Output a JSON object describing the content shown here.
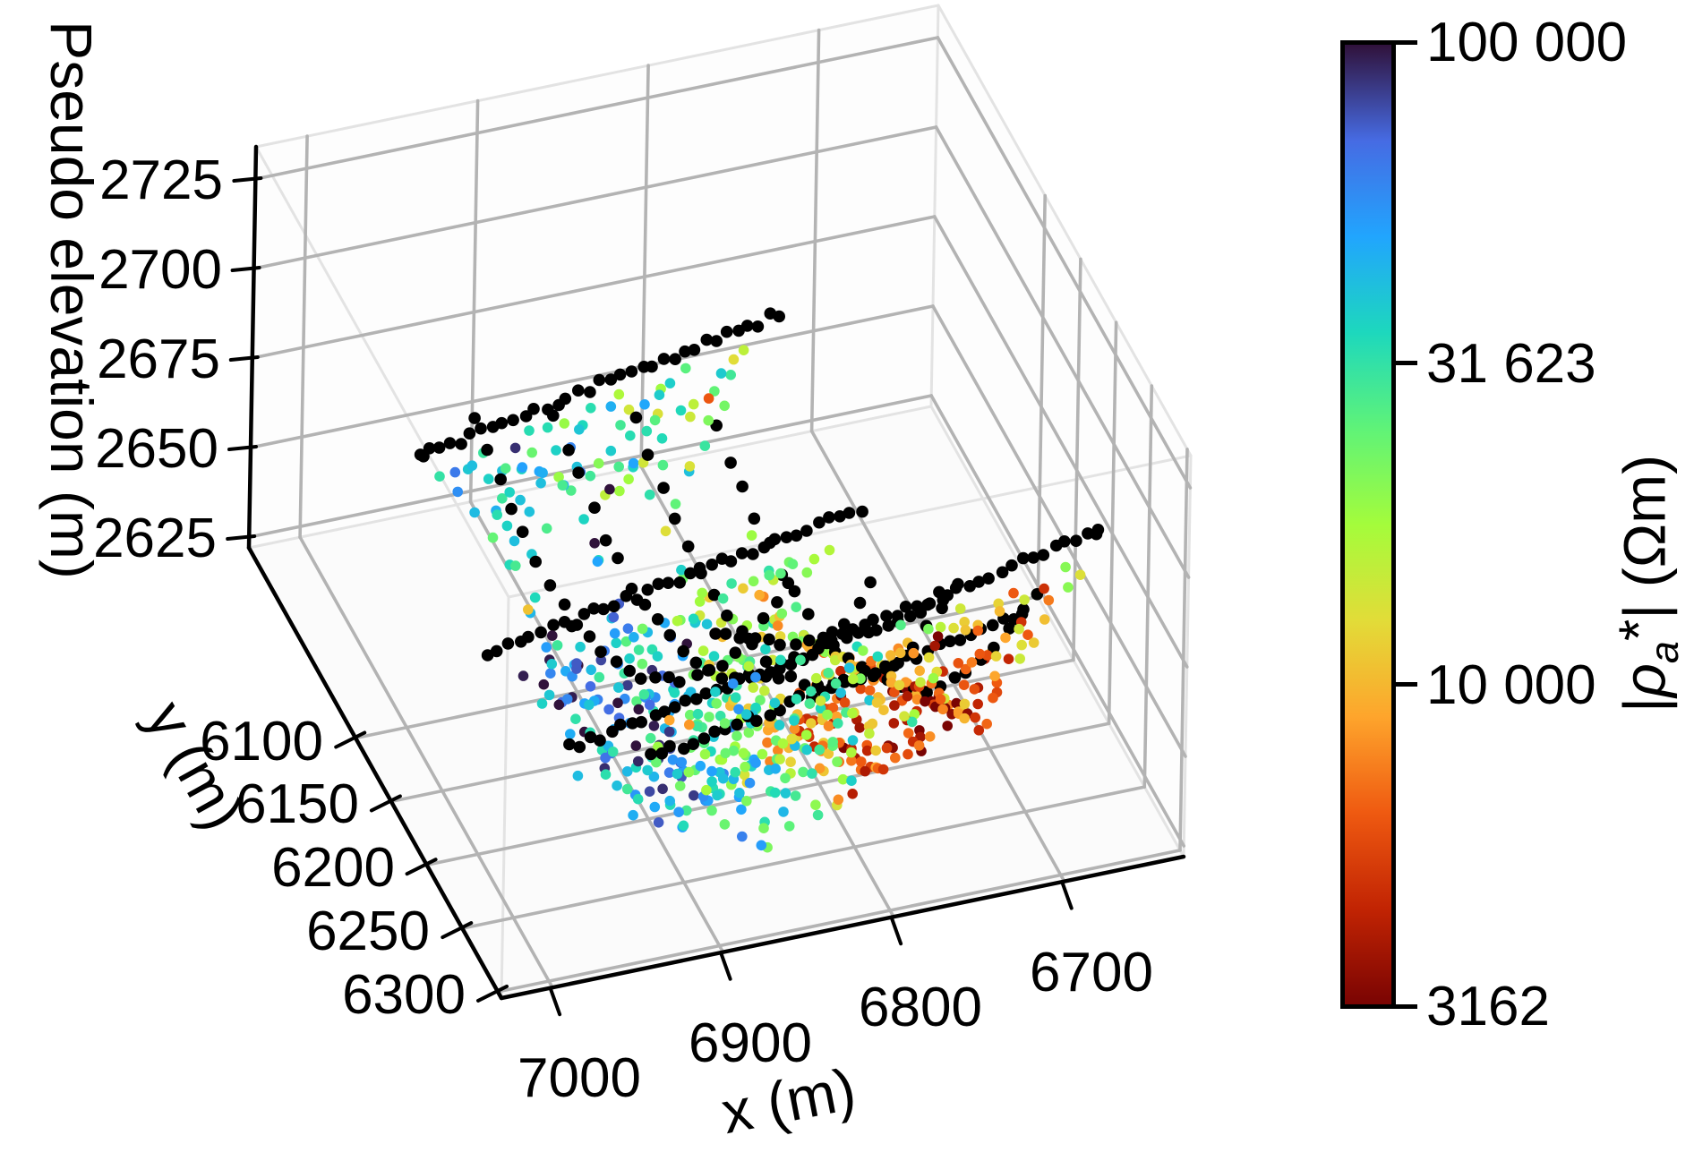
{
  "figure": {
    "background": "#ffffff",
    "description": "3D scatter plot of apparent resistivity pseudosections from crossing geoelectrical survey lines; black dots are electrode positions on the terrain surface, colored dots are measurement midpoints at pseudo depth, colored by apparent resistivity on a log scale."
  },
  "axes": {
    "x": {
      "label": "x (m)",
      "ticks": [
        7000,
        6900,
        6800,
        6700
      ],
      "tick_labels": [
        "7000",
        "6900",
        "6800",
        "6700"
      ],
      "range_left_to_right": [
        7030,
        6630
      ],
      "reversed": true
    },
    "y": {
      "label": "y (m)",
      "ticks": [
        6100,
        6150,
        6200,
        6250,
        6300
      ],
      "tick_labels": [
        "6100",
        "6150",
        "6200",
        "6250",
        "6300"
      ],
      "range_back_to_front": [
        5950,
        6305
      ]
    },
    "z": {
      "label": "Pseudo elevation (m)",
      "ticks": [
        2625,
        2650,
        2675,
        2700,
        2725
      ],
      "tick_labels": [
        "2625",
        "2650",
        "2675",
        "2700",
        "2725"
      ],
      "range_bottom_to_top": [
        2622,
        2734
      ]
    },
    "grid_color": "#b3b3b3",
    "pane_edge_color": "#e3e3e3",
    "pane_fill_floor": "#fbfbfb",
    "pane_fill_walls": "#fdfdfd",
    "spine_color": "#000000"
  },
  "colorbar": {
    "title_parts": {
      "open": "|",
      "rho": "ρ",
      "sub": "a",
      "star": "*",
      "close": "| (Ωm)"
    },
    "title_text": "|ρa*| (Ωm)",
    "scale": "log10",
    "vmin": 3162,
    "vmax": 100000,
    "tick_values": [
      100000,
      31623,
      10000,
      3162
    ],
    "tick_labels": [
      "100 000",
      "31 623",
      "10 000",
      "3162"
    ],
    "colormap": "turbo_reversed",
    "turbo_stops": [
      "#30123b",
      "#466be3",
      "#21a5fe",
      "#1dd8bd",
      "#5ff378",
      "#a4fc3b",
      "#e2dc38",
      "#fea52c",
      "#ef5a11",
      "#c22403",
      "#7a0403"
    ],
    "border_color": "#000000"
  },
  "chart_data": {
    "type": "scatter",
    "subtype": "scatter3d-pseudosection",
    "electrode_marker": {
      "color": "#000000",
      "radius_px": 6.8
    },
    "measurement_marker": {
      "radius_px": 5.8
    },
    "survey_grid": {
      "center_xy": [
        6830,
        6182
      ],
      "u_dir": [
        -0.8387,
        -0.5446
      ],
      "v_dir": [
        -0.5446,
        0.8387
      ],
      "y_compress": 0.78,
      "long_lines": {
        "v_offsets": [
          -118,
          -59,
          0,
          59,
          118
        ],
        "half_length_m": 168,
        "electrode_spacing_m": 9.5,
        "z_offsets": [
          8,
          3,
          0,
          -5,
          -10
        ]
      },
      "cross_lines": {
        "u_offsets": [
          -110,
          -37,
          37,
          110
        ],
        "half_length_m": 118,
        "electrode_spacing_m": 9.5,
        "z_offsets": [
          14,
          5,
          -6,
          -16
        ]
      },
      "terrain": {
        "base": 2649,
        "quad_v": 0.0037,
        "lin_u": -0.11,
        "lin_v": 0.0,
        "noise_m": 1.2
      },
      "clamp": {
        "x": [
          6634,
          7026
        ],
        "y": [
          5958,
          6300
        ],
        "z": [
          2623,
          2731
        ]
      }
    },
    "pseudosection": {
      "levels": 7,
      "depth_base_m": 4,
      "depth_step_m": 5.2,
      "long_counts": [
        21,
        18,
        15,
        12,
        9,
        6,
        3
      ],
      "cross_counts": [
        15,
        13,
        11,
        9,
        7,
        5,
        3
      ],
      "lateral_jitter_m": 6,
      "depth_jitter_m": 2.5,
      "value_model": {
        "log10_base": 4.33,
        "low_bump": {
          "u": 70,
          "v": 45,
          "sigma": 95,
          "amp": -0.78
        },
        "high_bump": {
          "u": -75,
          "v": -35,
          "sigma": 115,
          "amp": 0.5
        },
        "jitter": 0.3,
        "outlier_prob": 0.05,
        "outlier_extra": 0.45,
        "clip": [
          3.5,
          5.0
        ]
      },
      "seed": 42
    }
  }
}
